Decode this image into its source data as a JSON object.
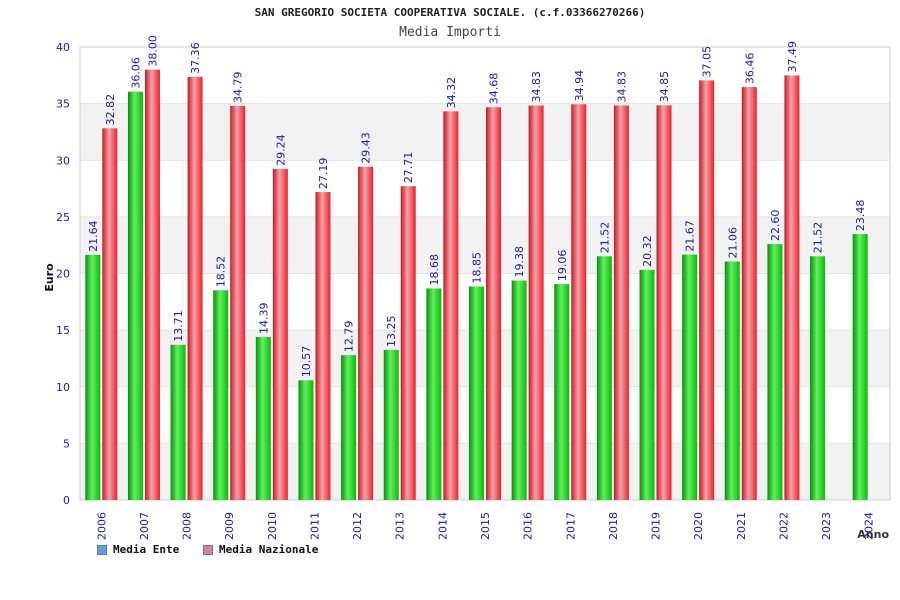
{
  "chart_data": {
    "type": "bar",
    "title": "SAN GREGORIO SOCIETA COOPERATIVA SOCIALE. (c.f.03366270266)",
    "subtitle": "Media Importi",
    "xlabel": "Anno",
    "ylabel": "Euro",
    "ylim": [
      0,
      40
    ],
    "yticks": [
      0,
      5,
      10,
      15,
      20,
      25,
      30,
      35,
      40
    ],
    "grid": true,
    "categories": [
      "2006",
      "2007",
      "2008",
      "2009",
      "2010",
      "2011",
      "2012",
      "2013",
      "2014",
      "2015",
      "2016",
      "2017",
      "2018",
      "2019",
      "2020",
      "2021",
      "2022",
      "2023",
      "2024"
    ],
    "series": [
      {
        "name": "Media Ente",
        "color": "#0cb80c",
        "legend_color": "#5aa0e6",
        "values": [
          21.64,
          36.06,
          13.71,
          18.52,
          14.39,
          10.57,
          12.79,
          13.25,
          18.68,
          18.85,
          19.38,
          19.06,
          21.52,
          20.32,
          21.67,
          21.06,
          22.6,
          21.52,
          23.48
        ],
        "labels": [
          "21.64",
          "36.06",
          "13.71",
          "18.52",
          "14.39",
          "10.57",
          "12.79",
          "13.25",
          "18.68",
          "18.85",
          "19.38",
          "19.06",
          "21.52",
          "20.32",
          "21.67",
          "21.06",
          "22.60",
          "21.52",
          "23.48"
        ]
      },
      {
        "name": "Media Nazionale",
        "color": "#e8222c",
        "legend_color": "#e07aa8",
        "values": [
          32.82,
          38.0,
          37.36,
          34.79,
          29.24,
          27.19,
          29.43,
          27.71,
          34.32,
          34.68,
          34.83,
          34.94,
          34.83,
          34.85,
          37.05,
          36.46,
          37.49,
          null,
          null
        ],
        "labels": [
          "32.82",
          "38.00",
          "37.36",
          "34.79",
          "29.24",
          "27.19",
          "29.43",
          "27.71",
          "34.32",
          "34.68",
          "34.83",
          "34.94",
          "34.83",
          "34.85",
          "37.05",
          "36.46",
          "37.49",
          "",
          ""
        ]
      }
    ]
  }
}
